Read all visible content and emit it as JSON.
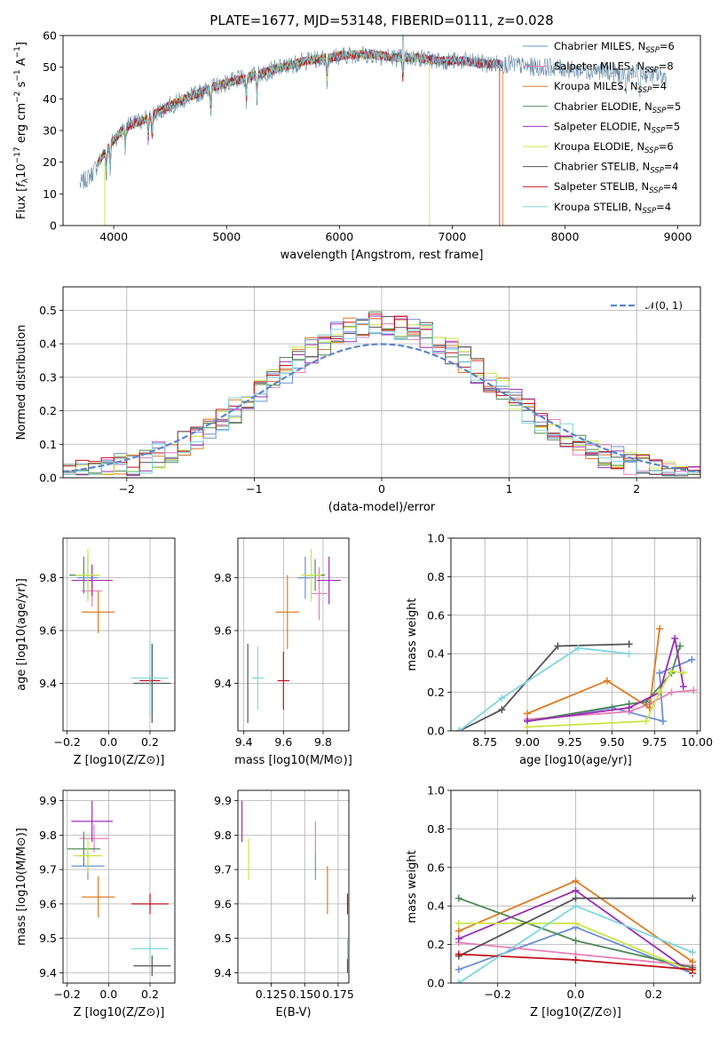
{
  "title": "PLATE=1677, MJD=53148, FIBERID=0111, z=0.028",
  "colors": {
    "Chabrier MILES": "#6b8fd6",
    "Salpeter MILES": "#e87fb8",
    "Kroupa MILES": "#e07b20",
    "Chabrier ELODIE": "#4e8a57",
    "Salpeter ELODIE": "#9b2db8",
    "Kroupa ELODIE": "#c9e645",
    "Chabrier STELIB": "#555555",
    "Salpeter STELIB": "#c0101a",
    "Kroupa STELIB": "#7ed6e0"
  },
  "chart_data": [
    {
      "id": "spectrum",
      "type": "line",
      "xlabel": "wavelength [Angstrom, rest frame]",
      "ylabel": "Flux [f_λ 10^-17 erg cm^-2 s^-1 A^-1]",
      "xlim": [
        3550,
        9200
      ],
      "ylim": [
        0,
        60
      ],
      "xticks": [
        4000,
        5000,
        6000,
        7000,
        8000,
        9000
      ],
      "yticks": [
        0,
        10,
        20,
        30,
        40,
        50,
        60
      ],
      "legend_position": "top-right",
      "legend": [
        {
          "label": "Chabrier MILES, N_SSP=6",
          "key": "Chabrier MILES"
        },
        {
          "label": "Salpeter MILES, N_SSP=8",
          "key": "Salpeter MILES"
        },
        {
          "label": "Kroupa MILES, N_SSP=4",
          "key": "Kroupa MILES"
        },
        {
          "label": "Chabrier ELODIE, N_SSP=5",
          "key": "Chabrier ELODIE"
        },
        {
          "label": "Salpeter ELODIE, N_SSP=5",
          "key": "Salpeter ELODIE"
        },
        {
          "label": "Kroupa ELODIE, N_SSP=6",
          "key": "Kroupa ELODIE"
        },
        {
          "label": "Chabrier STELIB, N_SSP=4",
          "key": "Chabrier STELIB"
        },
        {
          "label": "Salpeter STELIB, N_SSP=4",
          "key": "Salpeter STELIB"
        },
        {
          "label": "Kroupa STELIB, N_SSP=4",
          "key": "Kroupa STELIB"
        }
      ],
      "continuum": {
        "x": [
          3700,
          3800,
          3900,
          4000,
          4100,
          4300,
          4500,
          4700,
          4900,
          5100,
          5300,
          5500,
          5700,
          5900,
          6100,
          6300,
          6500,
          6700,
          6900,
          7100,
          7300,
          7500,
          7700,
          7900,
          8100,
          8300,
          8500,
          8700,
          8900
        ],
        "y": [
          13,
          16,
          22,
          27,
          31,
          34,
          38,
          41,
          44,
          46,
          48,
          50,
          52,
          53,
          54,
          54,
          53,
          53,
          52,
          52,
          51,
          51,
          50,
          50,
          49,
          49,
          48,
          48,
          47
        ]
      },
      "model_x_range": [
        3850,
        7450
      ],
      "cutoffs": {
        "Kroupa ELODIE": 6800,
        "Salpeter STELIB": 7420,
        "Kroupa ELODIE blue": 3920
      },
      "grid": false
    },
    {
      "id": "residual-histogram",
      "type": "histogram",
      "xlabel": "(data-model)/error",
      "ylabel": "Normed distribution",
      "xlim": [
        -2.5,
        2.5
      ],
      "ylim": [
        0,
        0.57
      ],
      "xticks": [
        -2,
        -1,
        0,
        1,
        2
      ],
      "yticks": [
        0.0,
        0.1,
        0.2,
        0.3,
        0.4,
        0.5
      ],
      "grid": true,
      "legend": [
        {
          "label": "𝒩(0, 1)"
        }
      ],
      "legend_position": "top-right",
      "bin_width": 0.1,
      "gaussian": {
        "mu": 0,
        "sigma": 1,
        "style": "dashed",
        "color": "#5b87cc"
      }
    },
    {
      "id": "age-vs-Z",
      "type": "errorbar",
      "xlabel": "Z [log10(Z/Z⊙)]",
      "ylabel": "age  [log10(age/yr)]",
      "xlim": [
        -0.22,
        0.32
      ],
      "ylim": [
        9.22,
        9.95
      ],
      "xticks": [
        -0.2,
        0.0,
        0.2
      ],
      "yticks": [
        9.4,
        9.6,
        9.8
      ],
      "grid": true,
      "points": [
        {
          "key": "Chabrier MILES",
          "x": -0.1,
          "xerr": 0.05,
          "y": 9.8,
          "yerr": 0.08
        },
        {
          "key": "Salpeter MILES",
          "x": -0.08,
          "xerr": 0.05,
          "y": 9.75,
          "yerr": 0.06
        },
        {
          "key": "Kroupa MILES",
          "x": -0.05,
          "xerr": 0.08,
          "y": 9.67,
          "yerr": 0.08
        },
        {
          "key": "Chabrier ELODIE",
          "x": -0.12,
          "xerr": 0.07,
          "y": 9.81,
          "yerr": 0.07
        },
        {
          "key": "Salpeter ELODIE",
          "x": -0.08,
          "xerr": 0.1,
          "y": 9.79,
          "yerr": 0.06
        },
        {
          "key": "Kroupa ELODIE",
          "x": -0.1,
          "xerr": 0.06,
          "y": 9.81,
          "yerr": 0.1
        },
        {
          "key": "Chabrier STELIB",
          "x": 0.21,
          "xerr": 0.09,
          "y": 9.4,
          "yerr": 0.15
        },
        {
          "key": "Salpeter STELIB",
          "x": 0.2,
          "xerr": 0.05,
          "y": 9.41,
          "yerr": 0.02
        },
        {
          "key": "Kroupa STELIB",
          "x": 0.2,
          "xerr": 0.09,
          "y": 9.42,
          "yerr": 0.14
        }
      ]
    },
    {
      "id": "age-vs-mass",
      "type": "errorbar",
      "xlabel": "mass [log10(M/M⊙)]",
      "ylabel": "",
      "xlim": [
        9.37,
        9.93
      ],
      "ylim": [
        9.22,
        9.95
      ],
      "xticks": [
        9.4,
        9.6,
        9.8
      ],
      "yticks": [
        9.4,
        9.6,
        9.8
      ],
      "grid": true,
      "points": [
        {
          "key": "Chabrier MILES",
          "x": 9.71,
          "xerr": 0.04,
          "y": 9.8,
          "yerr": 0.08
        },
        {
          "key": "Salpeter MILES",
          "x": 9.78,
          "xerr": 0.04,
          "y": 9.74,
          "yerr": 0.1
        },
        {
          "key": "Kroupa MILES",
          "x": 9.62,
          "xerr": 0.06,
          "y": 9.67,
          "yerr": 0.14
        },
        {
          "key": "Chabrier ELODIE",
          "x": 9.76,
          "xerr": 0.05,
          "y": 9.81,
          "yerr": 0.06
        },
        {
          "key": "Salpeter ELODIE",
          "x": 9.83,
          "xerr": 0.06,
          "y": 9.79,
          "yerr": 0.09
        },
        {
          "key": "Kroupa ELODIE",
          "x": 9.74,
          "xerr": 0.05,
          "y": 9.81,
          "yerr": 0.1
        },
        {
          "key": "Chabrier STELIB",
          "x": 9.42,
          "xerr": 0.0,
          "y": 9.4,
          "yerr": 0.15
        },
        {
          "key": "Salpeter STELIB",
          "x": 9.6,
          "xerr": 0.03,
          "y": 9.41,
          "yerr": 0.11
        },
        {
          "key": "Kroupa STELIB",
          "x": 9.47,
          "xerr": 0.03,
          "y": 9.42,
          "yerr": 0.12
        }
      ]
    },
    {
      "id": "mass-weight-vs-age",
      "type": "line",
      "xlabel": "age  [log10(age/yr)]",
      "ylabel": "mass weight",
      "xlim": [
        8.55,
        10.02
      ],
      "ylim": [
        0,
        1.0
      ],
      "xticks": [
        8.75,
        9.0,
        9.25,
        9.5,
        9.75,
        10.0
      ],
      "yticks": [
        0.0,
        0.2,
        0.4,
        0.6,
        0.8,
        1.0
      ],
      "grid": true,
      "series": [
        {
          "key": "Chabrier MILES",
          "x": [
            9.0,
            9.5,
            9.8,
            9.78,
            9.97
          ],
          "y": [
            0.05,
            0.12,
            0.05,
            0.3,
            0.37
          ]
        },
        {
          "key": "Salpeter MILES",
          "x": [
            9.0,
            9.6,
            9.72,
            9.85,
            9.98
          ],
          "y": [
            0.06,
            0.1,
            0.14,
            0.2,
            0.21
          ]
        },
        {
          "key": "Kroupa MILES",
          "x": [
            9.0,
            9.47,
            9.72,
            9.78
          ],
          "y": [
            0.09,
            0.26,
            0.12,
            0.53
          ]
        },
        {
          "key": "Chabrier ELODIE",
          "x": [
            9.0,
            9.6,
            9.7,
            9.85,
            9.9
          ],
          "y": [
            0.05,
            0.14,
            0.15,
            0.3,
            0.44
          ]
        },
        {
          "key": "Salpeter ELODIE",
          "x": [
            9.0,
            9.6,
            9.78,
            9.87,
            9.92
          ],
          "y": [
            0.05,
            0.12,
            0.2,
            0.48,
            0.23
          ]
        },
        {
          "key": "Kroupa ELODIE",
          "x": [
            9.0,
            9.7,
            9.78,
            9.85,
            9.92
          ],
          "y": [
            0.02,
            0.05,
            0.2,
            0.31,
            0.3
          ]
        },
        {
          "key": "Chabrier STELIB",
          "x": [
            8.6,
            8.85,
            9.18,
            9.6
          ],
          "y": [
            0.0,
            0.11,
            0.44,
            0.45
          ]
        },
        {
          "key": "Kroupa STELIB",
          "x": [
            8.6,
            8.85,
            9.3,
            9.6
          ],
          "y": [
            0.0,
            0.17,
            0.43,
            0.4
          ]
        }
      ]
    },
    {
      "id": "mass-vs-Z",
      "type": "errorbar",
      "xlabel": "Z [log10(Z/Z⊙)]",
      "ylabel": "mass [log10(M/M⊙)]",
      "xlim": [
        -0.22,
        0.32
      ],
      "ylim": [
        9.37,
        9.93
      ],
      "xticks": [
        -0.2,
        0.0,
        0.2
      ],
      "yticks": [
        9.4,
        9.5,
        9.6,
        9.7,
        9.8,
        9.9
      ],
      "grid": true,
      "points": [
        {
          "key": "Chabrier MILES",
          "x": -0.1,
          "xerr": 0.08,
          "y": 9.71,
          "yerr": 0.04
        },
        {
          "key": "Salpeter MILES",
          "x": -0.07,
          "xerr": 0.07,
          "y": 9.79,
          "yerr": 0.04
        },
        {
          "key": "Kroupa MILES",
          "x": -0.05,
          "xerr": 0.08,
          "y": 9.62,
          "yerr": 0.06
        },
        {
          "key": "Chabrier ELODIE",
          "x": -0.12,
          "xerr": 0.08,
          "y": 9.76,
          "yerr": 0.05
        },
        {
          "key": "Salpeter ELODIE",
          "x": -0.08,
          "xerr": 0.1,
          "y": 9.84,
          "yerr": 0.06
        },
        {
          "key": "Kroupa ELODIE",
          "x": -0.1,
          "xerr": 0.07,
          "y": 9.74,
          "yerr": 0.05
        },
        {
          "key": "Chabrier STELIB",
          "x": 0.21,
          "xerr": 0.09,
          "y": 9.42,
          "yerr": 0.03
        },
        {
          "key": "Salpeter STELIB",
          "x": 0.2,
          "xerr": 0.09,
          "y": 9.6,
          "yerr": 0.03
        },
        {
          "key": "Kroupa STELIB",
          "x": 0.2,
          "xerr": 0.09,
          "y": 9.47,
          "yerr": 0.03
        }
      ]
    },
    {
      "id": "mass-vs-EBV",
      "type": "errorbar",
      "xlabel": "E(B-V)",
      "ylabel": "",
      "xlim": [
        0.1,
        0.183
      ],
      "ylim": [
        9.37,
        9.93
      ],
      "xticks": [
        0.125,
        0.15,
        0.175
      ],
      "ytick_values": [
        9.4,
        9.5,
        9.6,
        9.7,
        9.8,
        9.9
      ],
      "grid": true,
      "points": [
        {
          "key": "Chabrier MILES",
          "x": 0.158,
          "xerr": 0,
          "y": 9.71,
          "yerr": 0.04
        },
        {
          "key": "Salpeter MILES",
          "x": 0.158,
          "xerr": 0,
          "y": 9.79,
          "yerr": 0.05
        },
        {
          "key": "Kroupa MILES",
          "x": 0.167,
          "xerr": 0,
          "y": 9.64,
          "yerr": 0.07
        },
        {
          "key": "Salpeter ELODIE",
          "x": 0.103,
          "xerr": 0,
          "y": 9.84,
          "yerr": 0.06
        },
        {
          "key": "Kroupa ELODIE",
          "x": 0.108,
          "xerr": 0,
          "y": 9.73,
          "yerr": 0.06
        },
        {
          "key": "Salpeter STELIB",
          "x": 0.182,
          "xerr": 0,
          "y": 9.6,
          "yerr": 0.03
        },
        {
          "key": "Chabrier STELIB",
          "x": 0.182,
          "xerr": 0,
          "y": 9.42,
          "yerr": 0.02
        },
        {
          "key": "Kroupa STELIB",
          "x": 0.182,
          "xerr": 0,
          "y": 9.47,
          "yerr": 0.03
        }
      ]
    },
    {
      "id": "mass-weight-vs-Z",
      "type": "line",
      "xlabel": "Z [log10(Z/Z⊙)]",
      "ylabel": "mass weight",
      "xlim": [
        -0.32,
        0.32
      ],
      "ylim": [
        0,
        1.0
      ],
      "xticks": [
        -0.2,
        0.0,
        0.2
      ],
      "yticks": [
        0.0,
        0.2,
        0.4,
        0.6,
        0.8,
        1.0
      ],
      "grid": true,
      "series": [
        {
          "key": "Chabrier MILES",
          "x": [
            -0.3,
            0.0,
            0.3
          ],
          "y": [
            0.07,
            0.29,
            0.05
          ]
        },
        {
          "key": "Salpeter MILES",
          "x": [
            -0.3,
            0.0,
            0.3
          ],
          "y": [
            0.21,
            0.15,
            0.09
          ]
        },
        {
          "key": "Kroupa MILES",
          "x": [
            -0.3,
            0.0,
            0.3
          ],
          "y": [
            0.27,
            0.53,
            0.11
          ]
        },
        {
          "key": "Chabrier ELODIE",
          "x": [
            -0.3,
            0.0,
            0.3
          ],
          "y": [
            0.44,
            0.22,
            0.08
          ]
        },
        {
          "key": "Salpeter ELODIE",
          "x": [
            -0.3,
            0.0,
            0.3
          ],
          "y": [
            0.23,
            0.48,
            0.05
          ]
        },
        {
          "key": "Kroupa ELODIE",
          "x": [
            -0.3,
            0.0,
            0.3
          ],
          "y": [
            0.31,
            0.31,
            0.06
          ]
        },
        {
          "key": "Chabrier STELIB",
          "x": [
            -0.3,
            0.0,
            0.3
          ],
          "y": [
            0.14,
            0.44,
            0.44
          ]
        },
        {
          "key": "Salpeter STELIB",
          "x": [
            -0.3,
            0.0,
            0.3
          ],
          "y": [
            0.15,
            0.12,
            0.07
          ]
        },
        {
          "key": "Kroupa STELIB",
          "x": [
            -0.3,
            0.0,
            0.3
          ],
          "y": [
            0.0,
            0.4,
            0.16
          ]
        }
      ]
    }
  ]
}
